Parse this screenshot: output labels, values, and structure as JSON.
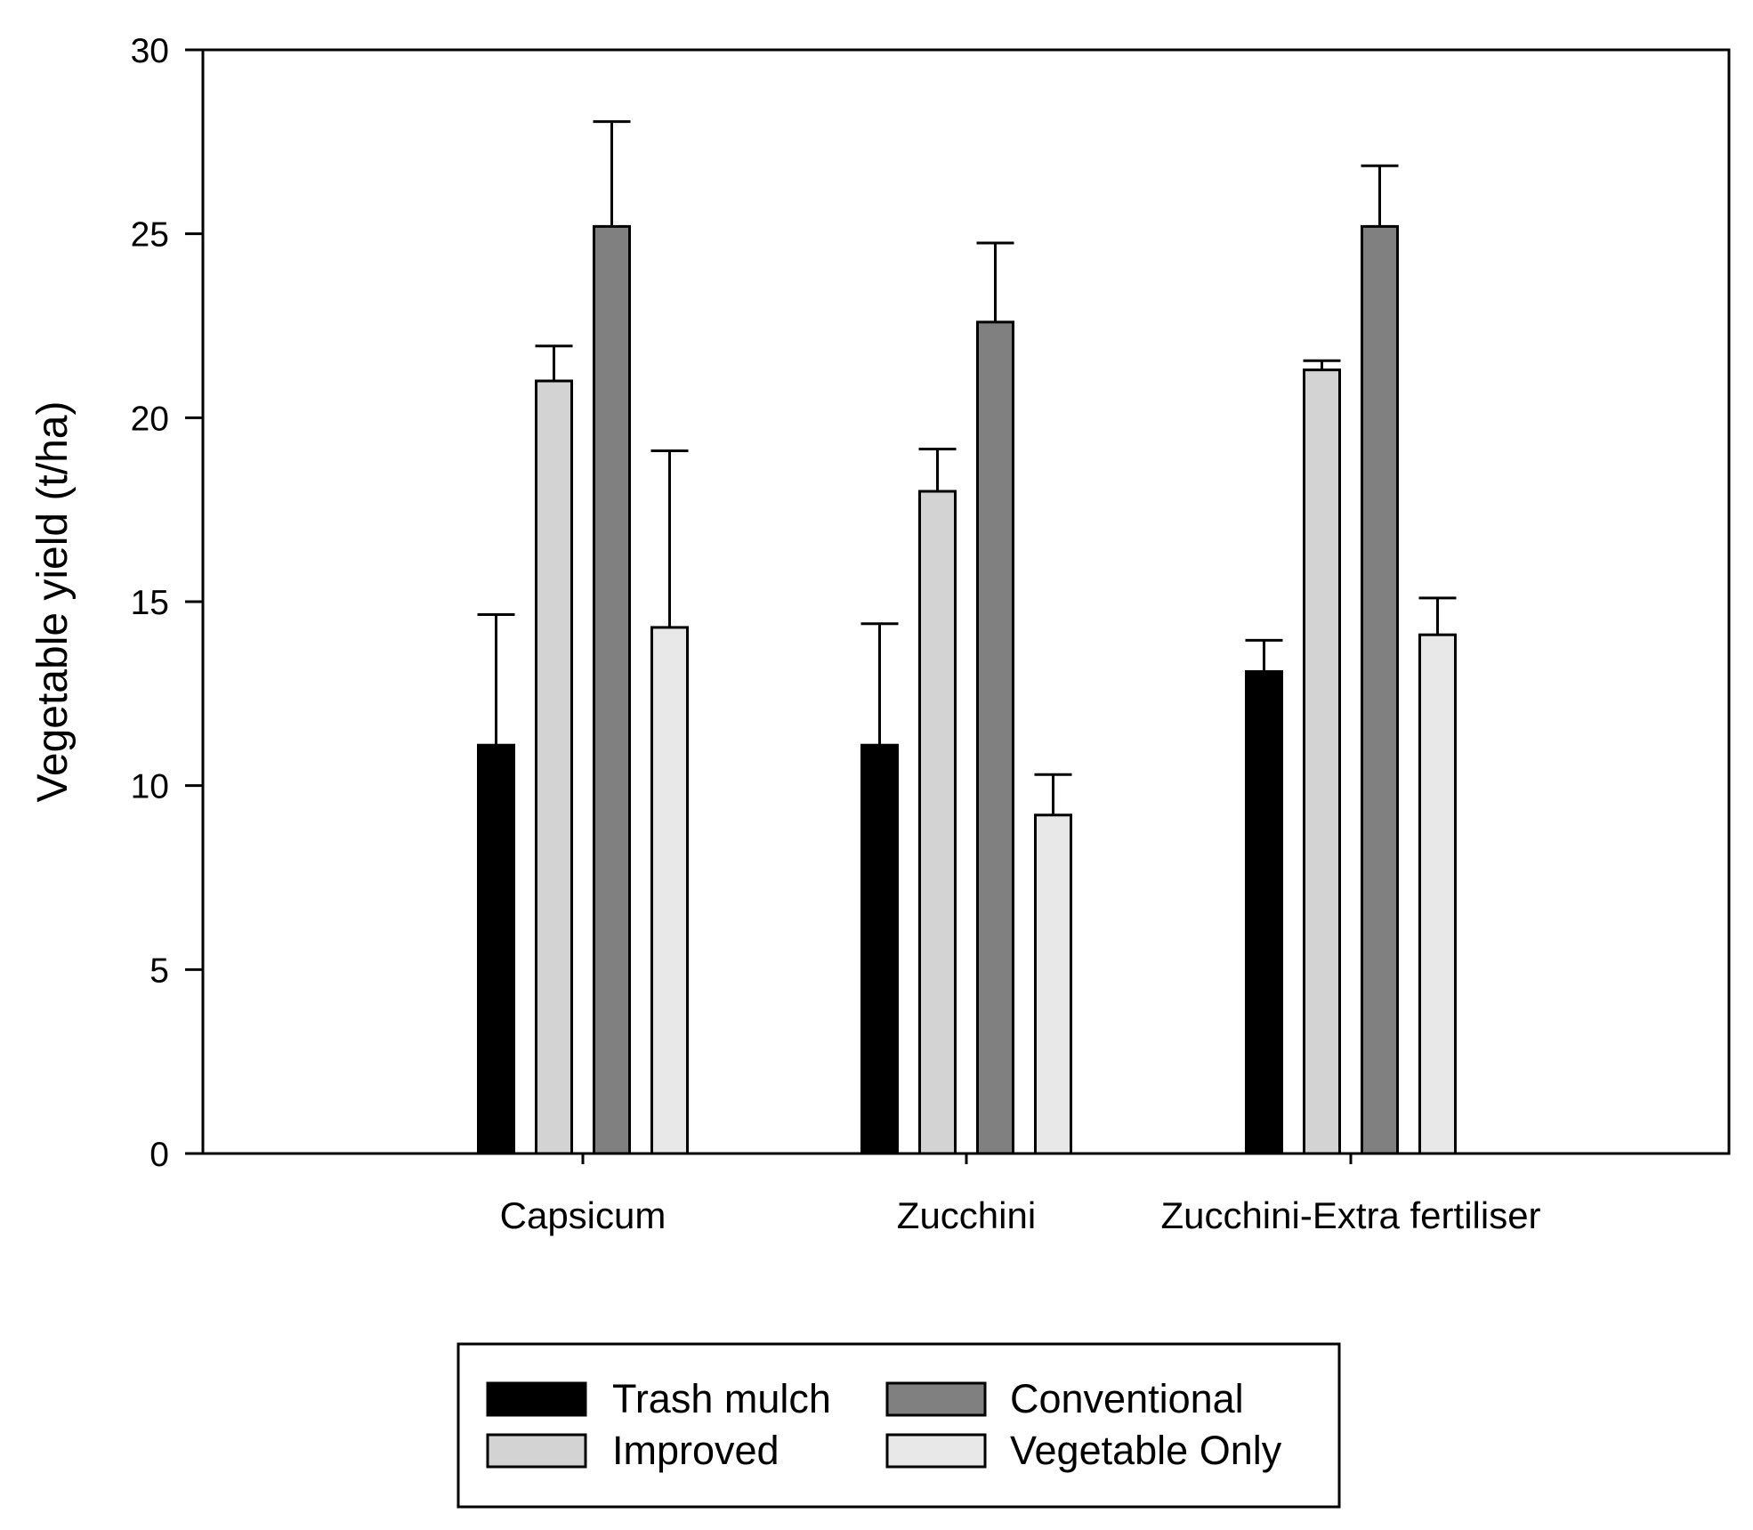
{
  "chart_data": {
    "type": "bar",
    "title": "",
    "xlabel": "",
    "ylabel": "Vegetable yield (t/ha)",
    "ylim": [
      0,
      30
    ],
    "yticks": [
      "0",
      "5",
      "10",
      "15",
      "20",
      "25",
      "30"
    ],
    "categories": [
      "Capsicum",
      "Zucchini",
      "Zucchini-Extra fertiliser"
    ],
    "series": [
      {
        "name": "Trash mulch",
        "color": "#000000",
        "values": [
          11.1,
          11.1,
          13.1
        ],
        "errors": [
          3.55,
          3.3,
          0.85
        ]
      },
      {
        "name": "Improved",
        "color": "#d3d3d3",
        "values": [
          21.0,
          18.0,
          21.3
        ],
        "errors": [
          0.95,
          1.15,
          0.25
        ]
      },
      {
        "name": "Conventional",
        "color": "#808080",
        "values": [
          25.2,
          22.6,
          25.2
        ],
        "errors": [
          2.85,
          2.15,
          1.65
        ]
      },
      {
        "name": "Vegetable Only",
        "color": "#e8e8e8",
        "values": [
          14.3,
          9.2,
          14.1
        ],
        "errors": [
          4.8,
          1.1,
          1.0
        ]
      }
    ],
    "legend": {
      "placement": "bottom",
      "columns": 2
    },
    "grid": false
  }
}
